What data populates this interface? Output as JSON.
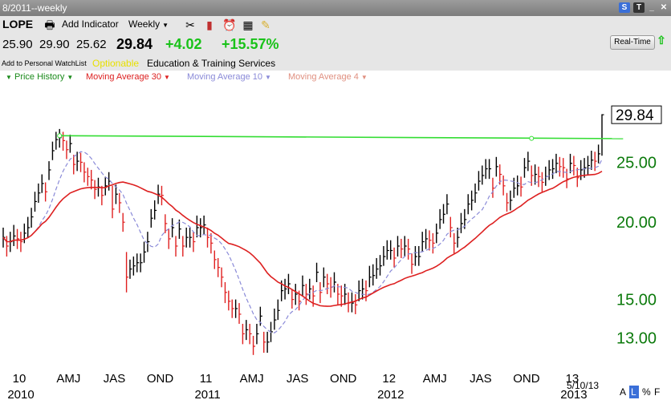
{
  "window": {
    "title": "8/2011--weekly"
  },
  "toolbar": {
    "symbol": "LOPE",
    "add_indicator": "Add Indicator",
    "timeframe": "Weekly",
    "open": "25.90",
    "high": "29.90",
    "low": "25.62",
    "last": "29.84",
    "change": "+4.02",
    "change_pct": "+15.57%",
    "watchlist": "Add to Personal WatchList",
    "optionable": "Optionable",
    "industry": "Education & Training Services",
    "realtime": "Real-Time"
  },
  "legend": {
    "price": "Price History",
    "ma30": "Moving Average 30",
    "ma10": "Moving Average 10",
    "ma4": "Moving Average 4"
  },
  "colors": {
    "price_green": "#19c219",
    "up_bar": "#000000",
    "down_bar": "#e02020",
    "ma30": "#dd2020",
    "ma10": "#8a8ad8",
    "ma4": "#e09080",
    "trendline": "#33dd33",
    "axis_green": "#0c7a0c"
  },
  "chart_data": {
    "type": "line",
    "title": "",
    "y_scale": "log",
    "ylim": [
      11.8,
      31.5
    ],
    "y_ticks": [
      "25.00",
      "20.00",
      "15.00",
      "13.00"
    ],
    "last_price_label": "29.84",
    "x_tick_labels": [
      "10",
      "AMJ",
      "JAS",
      "OND",
      "11",
      "AMJ",
      "JAS",
      "OND",
      "12",
      "AMJ",
      "JAS",
      "OND",
      "13"
    ],
    "year_labels": [
      "2010",
      "2011",
      "2012",
      "2013"
    ],
    "date_label": "5/10/13",
    "bottom_right_labels": [
      "A",
      "L",
      "%",
      "F"
    ],
    "series": [
      {
        "name": "Price History",
        "weekly_close": [
          18.9,
          18.3,
          18.6,
          19.0,
          18.8,
          18.6,
          19.2,
          19.6,
          20.4,
          21.6,
          22.3,
          23.1,
          22.4,
          24.3,
          26.1,
          27.2,
          27.4,
          27.1,
          26.2,
          26.8,
          24.8,
          25.1,
          25.0,
          24.1,
          23.7,
          23.4,
          22.6,
          22.8,
          22.1,
          22.9,
          23.3,
          21.0,
          22.2,
          21.5,
          20.0,
          16.3,
          16.8,
          17.0,
          17.2,
          17.2,
          17.9,
          18.6,
          20.3,
          20.9,
          22.2,
          22.1,
          19.9,
          18.8,
          19.6,
          18.3,
          19.5,
          18.3,
          18.9,
          18.9,
          18.6,
          19.6,
          19.6,
          19.8,
          18.9,
          18.5,
          17.4,
          16.9,
          16.3,
          15.4,
          14.9,
          14.5,
          14.5,
          14.2,
          13.2,
          13.4,
          13.2,
          12.6,
          13.2,
          14.1,
          12.8,
          12.8,
          13.3,
          13.9,
          14.4,
          15.5,
          15.6,
          15.9,
          15.0,
          15.3,
          14.9,
          15.8,
          15.3,
          15.6,
          15.2,
          16.6,
          15.4,
          16.3,
          15.9,
          15.7,
          16.0,
          15.3,
          15.2,
          15.3,
          14.8,
          14.8,
          14.7,
          15.5,
          15.6,
          15.5,
          16.3,
          16.4,
          16.8,
          17.0,
          17.6,
          18.0,
          18.0,
          17.5,
          18.3,
          18.1,
          18.3,
          18.1,
          17.1,
          17.6,
          17.6,
          18.6,
          18.8,
          18.7,
          18.5,
          19.2,
          20.2,
          20.6,
          21.4,
          19.6,
          18.5,
          18.9,
          19.9,
          20.2,
          21.4,
          21.7,
          22.3,
          23.3,
          23.8,
          24.4,
          24.4,
          22.7,
          24.6,
          23.9,
          22.9,
          21.5,
          21.7,
          22.7,
          22.9,
          22.8,
          24.5,
          25.1,
          23.8,
          23.9,
          23.7,
          23.2,
          23.7,
          24.3,
          24.4,
          24.9,
          24.6,
          24.5,
          23.5,
          24.9,
          24.7,
          23.6,
          24.3,
          24.5,
          24.7,
          25.2,
          25.1,
          25.8,
          29.84
        ],
        "weekly_high": [
          19.6,
          19.0,
          19.3,
          19.8,
          19.5,
          19.3,
          19.9,
          20.4,
          21.1,
          22.4,
          23.1,
          23.9,
          23.2,
          25.1,
          27.0,
          28.0,
          28.3,
          28.0,
          27.1,
          27.7,
          25.7,
          26.0,
          25.9,
          25.0,
          24.5,
          24.3,
          23.4,
          23.6,
          22.9,
          23.7,
          24.1,
          22.9,
          23.0,
          22.3,
          20.7,
          17.9,
          17.4,
          17.6,
          17.8,
          17.8,
          18.6,
          19.3,
          21.0,
          21.7,
          23.0,
          22.9,
          20.6,
          19.5,
          20.3,
          19.0,
          20.2,
          19.0,
          19.6,
          19.6,
          19.3,
          20.5,
          20.3,
          20.5,
          19.6,
          19.2,
          18.0,
          17.5,
          16.9,
          16.0,
          15.5,
          15.0,
          15.0,
          14.8,
          13.7,
          13.9,
          13.7,
          13.1,
          13.7,
          14.6,
          13.3,
          13.3,
          13.8,
          14.5,
          15.0,
          16.1,
          16.2,
          16.5,
          15.6,
          15.9,
          15.5,
          16.4,
          15.9,
          16.2,
          15.8,
          17.2,
          16.0,
          16.9,
          16.5,
          16.3,
          16.6,
          15.9,
          15.8,
          15.9,
          15.4,
          15.4,
          15.3,
          16.1,
          16.2,
          16.1,
          17.0,
          17.1,
          17.5,
          17.7,
          18.3,
          18.7,
          18.7,
          18.2,
          19.0,
          18.8,
          19.0,
          18.8,
          17.8,
          18.3,
          18.3,
          19.3,
          19.5,
          19.4,
          19.2,
          19.9,
          21.0,
          21.4,
          22.2,
          20.4,
          19.2,
          19.6,
          20.7,
          21.0,
          22.2,
          22.5,
          23.1,
          24.2,
          24.7,
          25.3,
          25.3,
          23.6,
          25.5,
          24.8,
          23.8,
          22.3,
          22.5,
          23.6,
          23.8,
          23.7,
          25.4,
          26.0,
          24.7,
          24.8,
          24.6,
          24.1,
          24.6,
          25.2,
          25.3,
          25.8,
          25.5,
          25.4,
          24.4,
          25.8,
          25.6,
          24.5,
          25.2,
          25.4,
          25.6,
          26.1,
          26.0,
          26.7,
          29.9
        ],
        "weekly_low": [
          18.2,
          17.6,
          17.9,
          18.3,
          18.1,
          17.9,
          18.5,
          18.9,
          19.6,
          20.8,
          21.5,
          22.3,
          21.6,
          23.4,
          25.2,
          26.2,
          26.4,
          26.1,
          25.3,
          25.9,
          23.9,
          24.2,
          24.1,
          23.2,
          22.9,
          22.6,
          21.8,
          22.0,
          21.3,
          22.1,
          22.5,
          20.3,
          21.4,
          20.7,
          19.3,
          15.4,
          16.2,
          16.4,
          16.6,
          16.6,
          17.2,
          17.9,
          19.6,
          20.2,
          21.4,
          21.3,
          19.2,
          18.1,
          18.9,
          17.6,
          18.8,
          17.6,
          18.2,
          18.2,
          17.9,
          18.9,
          18.9,
          19.1,
          18.2,
          17.8,
          16.8,
          16.3,
          15.7,
          14.8,
          14.4,
          14.0,
          14.0,
          13.7,
          12.7,
          12.9,
          12.7,
          12.2,
          12.7,
          13.6,
          12.3,
          12.3,
          12.8,
          13.4,
          13.9,
          14.9,
          15.0,
          15.3,
          14.5,
          14.7,
          14.4,
          15.2,
          14.7,
          15.0,
          14.6,
          16.0,
          14.8,
          15.7,
          15.3,
          15.1,
          15.4,
          14.7,
          14.6,
          14.7,
          14.3,
          14.3,
          14.2,
          14.9,
          15.0,
          14.9,
          15.7,
          15.8,
          16.2,
          16.4,
          17.0,
          17.4,
          17.4,
          16.9,
          17.6,
          17.5,
          17.6,
          17.4,
          16.5,
          17.0,
          17.0,
          17.9,
          18.1,
          18.0,
          17.8,
          18.5,
          19.5,
          19.9,
          20.6,
          18.9,
          17.8,
          18.2,
          19.2,
          19.5,
          20.6,
          20.9,
          21.5,
          22.5,
          23.0,
          23.5,
          23.5,
          21.9,
          23.7,
          23.0,
          22.1,
          20.8,
          20.9,
          21.9,
          22.1,
          22.0,
          23.6,
          24.2,
          22.9,
          23.0,
          22.8,
          22.4,
          22.9,
          23.4,
          23.5,
          24.0,
          23.7,
          23.6,
          22.7,
          24.0,
          23.8,
          22.8,
          23.4,
          23.6,
          23.8,
          24.3,
          24.2,
          24.9,
          25.62
        ]
      }
    ],
    "trendline": {
      "start_week": 16,
      "start_price": 27.6,
      "end_week": 176,
      "end_price": 27.3
    }
  }
}
